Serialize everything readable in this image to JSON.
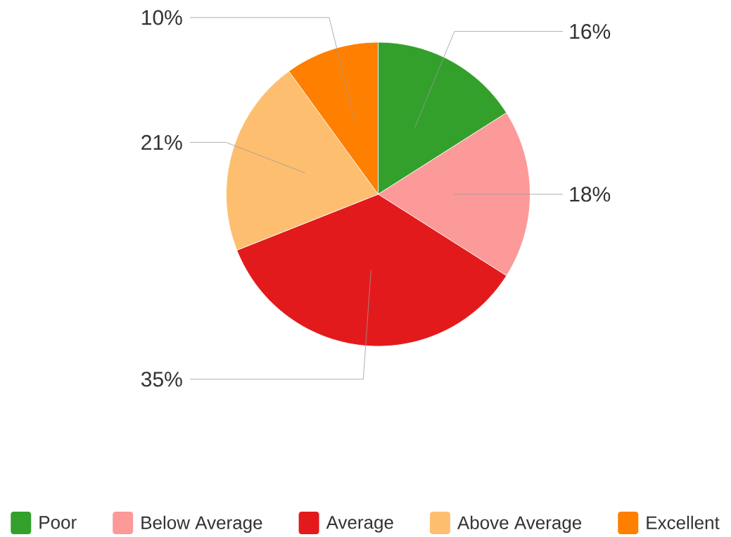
{
  "chart_data": {
    "type": "pie",
    "categories": [
      "Poor",
      "Below Average",
      "Average",
      "Above Average",
      "Excellent"
    ],
    "values": [
      16,
      18,
      35,
      21,
      10
    ],
    "colors": [
      "#33a02c",
      "#fb9a99",
      "#e31a1c",
      "#fdbf6f",
      "#ff7f00"
    ],
    "value_labels": [
      "16%",
      "18%",
      "35%",
      "21%",
      "10%"
    ],
    "legend": "bottom"
  }
}
